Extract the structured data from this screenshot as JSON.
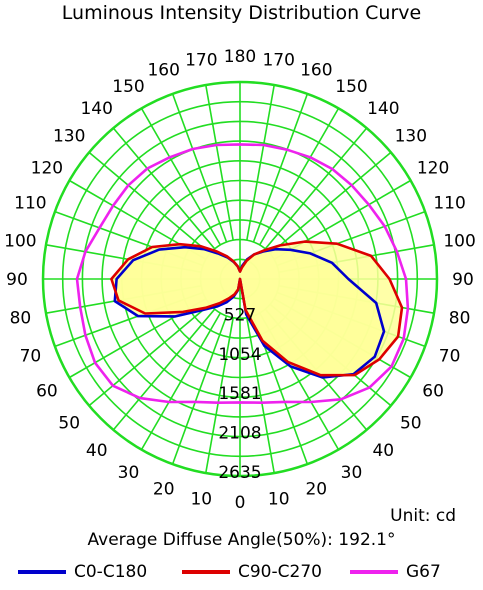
{
  "chart_data": {
    "type": "polar",
    "title": "Luminous Intensity Distribution Curve",
    "unit_label": "Unit: cd",
    "diffuse_angle_label": "Average Diffuse Angle(50%): 192.1°",
    "radial_tick_labels": [
      "527",
      "1054",
      "1581",
      "2108",
      "2635"
    ],
    "radial_ticks": [
      527,
      1054,
      1581,
      2108,
      2635
    ],
    "angle_labels_left": [
      "0",
      "10",
      "20",
      "30",
      "40",
      "50",
      "60",
      "70",
      "80",
      "90",
      "100",
      "110",
      "120",
      "130",
      "140",
      "150",
      "160",
      "170"
    ],
    "angle_labels_right": [
      "10",
      "20",
      "30",
      "40",
      "50",
      "60",
      "70",
      "80",
      "90",
      "100",
      "110",
      "120",
      "130",
      "140",
      "150",
      "160",
      "170"
    ],
    "angle_label_top": "180",
    "rlim": [
      0,
      2635
    ],
    "grid": true,
    "legend_position": "bottom",
    "colors": {
      "grid": "#22dd22",
      "fill": "#ffff99",
      "background": "#ffffff"
    },
    "series": [
      {
        "name": "C0-C180",
        "color": "#0000cc",
        "angles": [
          0,
          10,
          20,
          30,
          40,
          50,
          60,
          70,
          80,
          90,
          100,
          110,
          120,
          130,
          140,
          150,
          160,
          170,
          180
        ],
        "right": [
          0,
          480,
          950,
          1350,
          1720,
          1980,
          2080,
          2050,
          1850,
          1450,
          1250,
          1000,
          780,
          620,
          480,
          380,
          280,
          180,
          100
        ],
        "left": [
          0,
          150,
          250,
          360,
          480,
          640,
          1000,
          1450,
          1700,
          1650,
          1450,
          1150,
          850,
          620,
          440,
          330,
          240,
          170,
          100
        ]
      },
      {
        "name": "C90-C270",
        "color": "#dd0000",
        "angles": [
          0,
          10,
          20,
          30,
          40,
          50,
          60,
          70,
          80,
          90,
          100,
          110,
          120,
          130,
          140,
          150,
          160,
          170,
          180
        ],
        "right": [
          0,
          420,
          880,
          1280,
          1680,
          2000,
          2150,
          2250,
          2200,
          2000,
          1780,
          1380,
          1000,
          700,
          500,
          380,
          260,
          160,
          100
        ],
        "left": [
          0,
          140,
          220,
          300,
          420,
          600,
          880,
          1350,
          1650,
          1720,
          1520,
          1250,
          930,
          680,
          480,
          350,
          250,
          170,
          100
        ]
      },
      {
        "name": "G67",
        "color": "#ee22ee",
        "angles": [
          0,
          10,
          20,
          30,
          40,
          50,
          60,
          70,
          80,
          90,
          100,
          110,
          120,
          130,
          140,
          150,
          160,
          170,
          180
        ],
        "right": [
          1650,
          1680,
          1750,
          1900,
          2100,
          2260,
          2340,
          2330,
          2280,
          2220,
          2130,
          2060,
          1990,
          1950,
          1920,
          1880,
          1840,
          1820,
          1800
        ],
        "left": [
          1650,
          1680,
          1750,
          1900,
          2080,
          2220,
          2240,
          2200,
          2170,
          2180,
          2100,
          2000,
          1960,
          1950,
          1930,
          1880,
          1850,
          1820,
          1800
        ]
      }
    ]
  }
}
